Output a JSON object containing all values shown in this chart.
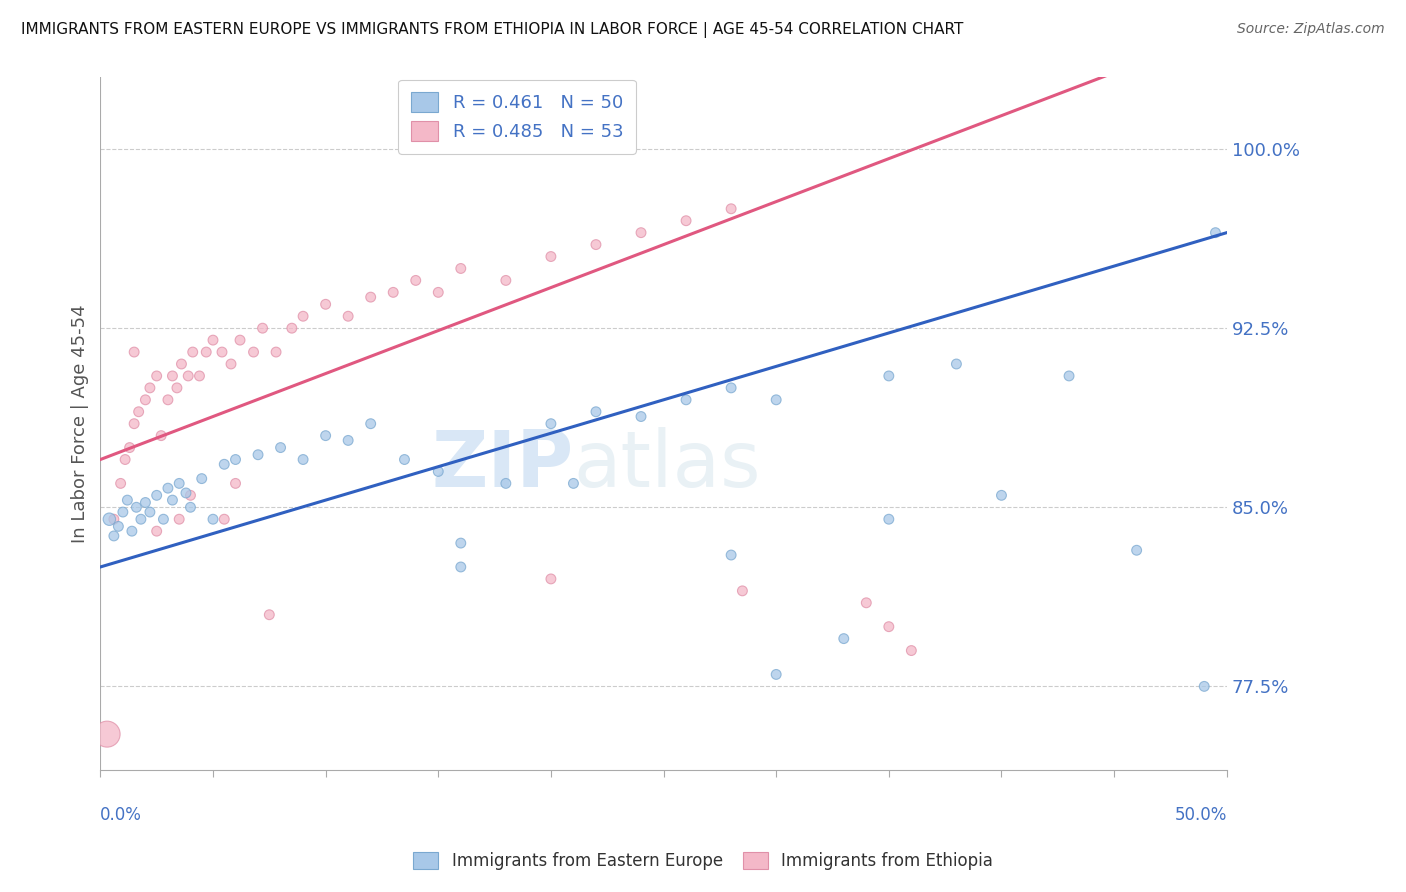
{
  "title": "IMMIGRANTS FROM EASTERN EUROPE VS IMMIGRANTS FROM ETHIOPIA IN LABOR FORCE | AGE 45-54 CORRELATION CHART",
  "source_text": "Source: ZipAtlas.com",
  "ylabel": "In Labor Force | Age 45-54",
  "right_yticks": [
    77.5,
    85.0,
    92.5,
    100.0
  ],
  "right_ytick_labels": [
    "77.5%",
    "85.0%",
    "92.5%",
    "100.0%"
  ],
  "xlim": [
    0.0,
    50.0
  ],
  "ylim": [
    74.0,
    103.0
  ],
  "blue_color": "#a8c8e8",
  "pink_color": "#f4b8c8",
  "blue_edge": "#7aa8d0",
  "pink_edge": "#e090a8",
  "trend_blue": "#3060c0",
  "trend_pink": "#e05880",
  "legend_blue_label": "R = 0.461   N = 50",
  "legend_pink_label": "R = 0.485   N = 53",
  "legend_r_color": "#4472c4",
  "watermark_zip": "ZIP",
  "watermark_atlas": "atlas",
  "blue_scatter_x": [
    0.4,
    0.6,
    0.8,
    1.0,
    1.2,
    1.4,
    1.6,
    1.8,
    2.0,
    2.2,
    2.5,
    2.8,
    3.0,
    3.2,
    3.5,
    3.8,
    4.0,
    4.5,
    5.0,
    5.5,
    6.0,
    7.0,
    8.0,
    9.0,
    10.0,
    11.0,
    12.0,
    13.5,
    15.0,
    16.0,
    18.0,
    20.0,
    22.0,
    24.0,
    26.0,
    28.0,
    30.0,
    35.0,
    38.0,
    40.0,
    43.0,
    46.0,
    49.5,
    28.0,
    35.0,
    21.0,
    16.0,
    33.0,
    30.0,
    49.0
  ],
  "blue_scatter_y": [
    84.5,
    83.8,
    84.2,
    84.8,
    85.3,
    84.0,
    85.0,
    84.5,
    85.2,
    84.8,
    85.5,
    84.5,
    85.8,
    85.3,
    86.0,
    85.6,
    85.0,
    86.2,
    84.5,
    86.8,
    87.0,
    87.2,
    87.5,
    87.0,
    88.0,
    87.8,
    88.5,
    87.0,
    86.5,
    82.5,
    86.0,
    88.5,
    89.0,
    88.8,
    89.5,
    90.0,
    89.5,
    90.5,
    91.0,
    85.5,
    90.5,
    83.2,
    96.5,
    83.0,
    84.5,
    86.0,
    83.5,
    79.5,
    78.0,
    77.5
  ],
  "blue_scatter_sizes": [
    80,
    50,
    50,
    50,
    50,
    50,
    50,
    50,
    50,
    50,
    50,
    50,
    50,
    50,
    50,
    50,
    50,
    50,
    50,
    50,
    50,
    50,
    50,
    50,
    50,
    50,
    50,
    50,
    50,
    50,
    50,
    50,
    50,
    50,
    50,
    50,
    50,
    50,
    50,
    50,
    50,
    50,
    50,
    50,
    50,
    50,
    50,
    50,
    50,
    50
  ],
  "pink_scatter_x": [
    0.3,
    0.6,
    0.9,
    1.1,
    1.3,
    1.5,
    1.7,
    2.0,
    2.2,
    2.5,
    2.7,
    3.0,
    3.2,
    3.4,
    3.6,
    3.9,
    4.1,
    4.4,
    4.7,
    5.0,
    5.4,
    5.8,
    6.2,
    6.8,
    7.2,
    7.8,
    8.5,
    9.0,
    10.0,
    11.0,
    12.0,
    13.0,
    14.0,
    15.0,
    16.0,
    18.0,
    20.0,
    22.0,
    24.0,
    26.0,
    28.0,
    2.5,
    3.5,
    4.0,
    5.5,
    6.0,
    1.5,
    7.5,
    35.0,
    36.0,
    34.0,
    20.0,
    28.5
  ],
  "pink_scatter_y": [
    75.5,
    84.5,
    86.0,
    87.0,
    87.5,
    88.5,
    89.0,
    89.5,
    90.0,
    90.5,
    88.0,
    89.5,
    90.5,
    90.0,
    91.0,
    90.5,
    91.5,
    90.5,
    91.5,
    92.0,
    91.5,
    91.0,
    92.0,
    91.5,
    92.5,
    91.5,
    92.5,
    93.0,
    93.5,
    93.0,
    93.8,
    94.0,
    94.5,
    94.0,
    95.0,
    94.5,
    95.5,
    96.0,
    96.5,
    97.0,
    97.5,
    84.0,
    84.5,
    85.5,
    84.5,
    86.0,
    91.5,
    80.5,
    80.0,
    79.0,
    81.0,
    82.0,
    81.5
  ],
  "pink_scatter_sizes": [
    350,
    50,
    50,
    50,
    50,
    50,
    50,
    50,
    50,
    50,
    50,
    50,
    50,
    50,
    50,
    50,
    50,
    50,
    50,
    50,
    50,
    50,
    50,
    50,
    50,
    50,
    50,
    50,
    50,
    50,
    50,
    50,
    50,
    50,
    50,
    50,
    50,
    50,
    50,
    50,
    50,
    50,
    50,
    50,
    50,
    50,
    50,
    50,
    50,
    50,
    50,
    50,
    50
  ],
  "footnote_left": "Immigrants from Eastern Europe",
  "footnote_right": "Immigrants from Ethiopia",
  "background_color": "#ffffff",
  "grid_color": "#cccccc",
  "xtick_positions": [
    0,
    5,
    10,
    15,
    20,
    25,
    30,
    35,
    40,
    45,
    50
  ]
}
